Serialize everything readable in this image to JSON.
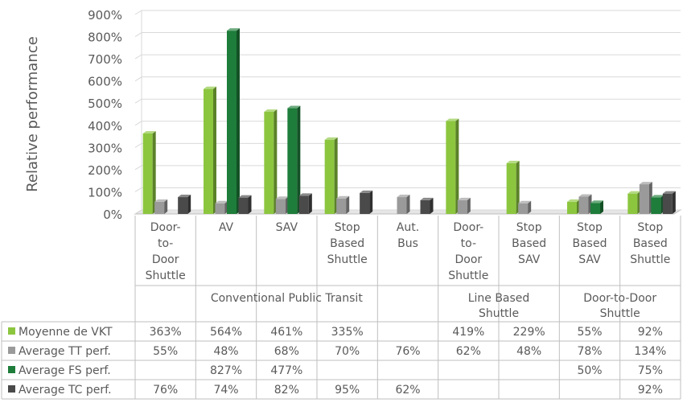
{
  "chart_data": {
    "type": "bar",
    "ylabel": "Relative performance",
    "ylim": [
      0,
      900
    ],
    "yticks": [
      "0%",
      "100%",
      "200%",
      "300%",
      "400%",
      "500%",
      "600%",
      "700%",
      "800%",
      "900%"
    ],
    "grid": true,
    "categories": [
      {
        "label": [
          "Door-",
          "to-",
          "Door",
          "Shuttle"
        ],
        "group": 0
      },
      {
        "label": [
          "AV"
        ],
        "group": 0
      },
      {
        "label": [
          "SAV"
        ],
        "group": 0
      },
      {
        "label": [
          "Stop",
          "Based",
          "Shuttle"
        ],
        "group": 0
      },
      {
        "label": [
          "Aut.",
          "Bus"
        ],
        "group": 0
      },
      {
        "label": [
          "Door-",
          "to-",
          "Door",
          "Shuttle"
        ],
        "group": 1
      },
      {
        "label": [
          "Stop",
          "Based",
          "SAV"
        ],
        "group": 1
      },
      {
        "label": [
          "Stop",
          "Based",
          "SAV"
        ],
        "group": 2
      },
      {
        "label": [
          "Stop",
          "Based",
          "Shuttle"
        ],
        "group": 2
      }
    ],
    "groups": [
      {
        "label": [
          "Conventional Public Transit"
        ]
      },
      {
        "label": [
          "Line Based",
          "Shuttle"
        ]
      },
      {
        "label": [
          "Door-to-Door",
          "Shuttle"
        ]
      }
    ],
    "series": [
      {
        "name": "Moyenne de VKT",
        "color": "#8cc63f",
        "values": [
          363,
          564,
          461,
          335,
          null,
          419,
          229,
          55,
          92
        ],
        "labels": [
          "363%",
          "564%",
          "461%",
          "335%",
          "",
          "419%",
          "229%",
          "55%",
          "92%"
        ]
      },
      {
        "name": "Average TT perf.",
        "color": "#9a9a9a",
        "values": [
          55,
          48,
          68,
          70,
          76,
          62,
          48,
          78,
          134
        ],
        "labels": [
          "55%",
          "48%",
          "68%",
          "70%",
          "76%",
          "62%",
          "48%",
          "78%",
          "134%"
        ]
      },
      {
        "name": "Average FS perf.",
        "color": "#1e7d3a",
        "values": [
          null,
          827,
          477,
          null,
          null,
          null,
          null,
          50,
          75
        ],
        "labels": [
          "",
          "827%",
          "477%",
          "",
          "",
          "",
          "",
          "50%",
          "75%"
        ]
      },
      {
        "name": "Average TC perf.",
        "color": "#4a4a4a",
        "values": [
          76,
          74,
          82,
          95,
          62,
          null,
          null,
          null,
          92
        ],
        "labels": [
          "76%",
          "74%",
          "82%",
          "95%",
          "62%",
          "",
          "",
          "",
          "92%"
        ]
      }
    ]
  }
}
